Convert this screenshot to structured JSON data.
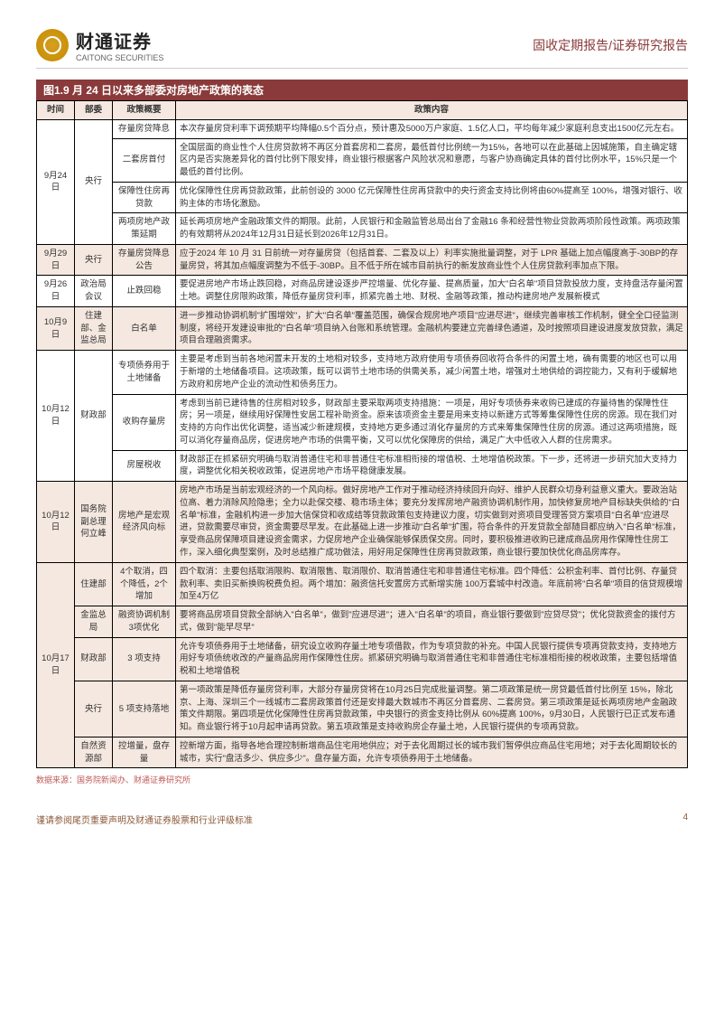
{
  "header": {
    "logo_cn": "财通证券",
    "logo_en": "CAITONG SECURITIES",
    "doc_type": "固收定期报告/证券研究报告"
  },
  "title": "图1.9 月 24 日以来多部委对房地产政策的表态",
  "columns": [
    "时间",
    "部委",
    "政策概要",
    "政策内容"
  ],
  "rows": [
    {
      "date": "9月24日",
      "dept": "央行",
      "summary": "存量房贷降息",
      "content": "本次存量房贷利率下调预期平均降幅0.5个百分点，预计惠及5000万户家庭、1.5亿人口，平均每年减少家庭利息支出1500亿元左右。"
    },
    {
      "date": "",
      "dept": "",
      "summary": "二套房首付",
      "content": "全国层面的商业性个人住房贷款将不再区分首套房和二套房，最低首付比例统一为15%，各地可以在此基础上因城施策，自主确定辖区内是否实施差异化的首付比例下限安排，商业银行根据客户风险状况和意愿，与客户协商确定具体的首付比例水平，15%只是一个最低的首付比例。"
    },
    {
      "date": "",
      "dept": "",
      "summary": "保障性住房再贷款",
      "content": "优化保障性住房再贷款政策，此前创设的 3000 亿元保障性住房再贷款中的央行资金支持比例将由60%提高至 100%，增强对银行、收购主体的市场化激励。"
    },
    {
      "date": "",
      "dept": "",
      "summary": "两项房地产政策延期",
      "content": "延长两项房地产金融政策文件的期限。此前，人民银行和金融监管总局出台了金融16 条和经营性物业贷款两项阶段性政策。两项政策的有效期将从2024年12月31日延长到2026年12月31日。"
    },
    {
      "date": "9月29日",
      "dept": "央行",
      "summary": "存量房贷降息公告",
      "content": "应于2024 年 10 月 31 日前统一对存量房贷（包括首套、二套及以上）利率实施批量调整，对于 LPR 基础上加点幅度高于-30BP的存量房贷，将其加点幅度调整为不低于-30BP。且不低于所在城市目前执行的新发放商业性个人住房贷款利率加点下限。",
      "highlight": true
    },
    {
      "date": "9月26日",
      "dept": "政治局会议",
      "summary": "止跌回稳",
      "content": "要促进房地产市场止跌回稳，对商品房建设逐步严控增量、优化存量、提高质量，加大\"白名单\"项目贷款投放力度，支持盘活存量闲置土地。调整住房限购政策，降低存量房贷利率，抓紧完善土地、财税、金融等政策，推动构建房地产发展新模式"
    },
    {
      "date": "10月9日",
      "dept": "住建部、金监总局",
      "summary": "白名单",
      "content": "进一步推动协调机制\"扩围增效\"，扩大\"白名单\"覆盖范围，确保合规房地产项目\"应进尽进\"，继续完善审核工作机制，健全全口径监测制度，将经开发建设审批的\"白名单\"项目纳入台账和系统管理。金融机构要建立完善绿色通道，及时按照项目建设进度发放贷款，满足项目合理融资需求。",
      "highlight": true
    },
    {
      "date": "10月12日",
      "dept": "财政部",
      "summary": "专项债券用于土地储备",
      "content": "主要是考虑到当前各地闲置未开发的土地相对较多，支持地方政府使用专项债券回收符合条件的闲置土地，确有需要的地区也可以用于新增的土地储备项目。这项政策，既可以调节土地市场的供需关系，减少闲置土地，增强对土地供给的调控能力，又有利于缓解地方政府和房地产企业的流动性和债务压力。"
    },
    {
      "date": "",
      "dept": "",
      "summary": "收购存量房",
      "content": "考虑到当前已建待售的住房相对较多，财政部主要采取两项支持措施：一项是，用好专项债券来收购已建成的存量待售的保障性住房；另一项是，继续用好保障性安居工程补助资金。原来该项资金主要是用来支持以新建方式等筹集保障性住房的房源。现在我们对支持的方向作出优化调整，适当减少新建规模，支持地方更多通过消化存量房的方式来筹集保障性住房的房源。通过这两项措施，既可以消化存量商品房，促进房地产市场的供需平衡，又可以优化保障房的供给，满足广大中低收入人群的住房需求。"
    },
    {
      "date": "",
      "dept": "",
      "summary": "房屋税收",
      "content": "财政部正在抓紧研究明确与取消普通住宅和非普通住宅标准相衔接的增值税、土地增值税政策。下一步，还将进一步研究加大支持力度，调整优化相关税收政策，促进房地产市场平稳健康发展。"
    },
    {
      "date": "10月12日",
      "dept": "国务院副总理何立峰",
      "summary": "房地产是宏观经济风向标",
      "content": "房地产市场是当前宏观经济的一个风向标。做好房地产工作对于推动经济持续回升向好、维护人民群众切身利益意义重大。要政治站位高、着力消除风险隐患；全力以赴保交楼、稳市场主体；要充分发挥房地产融资协调机制作用，加快修复房地产目标缺失供给的\"白名单\"标准，金融机构进一步加大信保贷和收成结等贷款政策包支持建议力度，切实做到对资项目受理答贷方案项目\"白名单\"应进尽进，贷款需要尽审贷，资金需要尽早发。在此基础上进一步推动\"白名单\"扩围，符合条件的开发贷款全部随目都应纳入\"白名单\"标准，享受商品房保障项目建设资金需求，力促房地产企业确保能够保质保交房。同时，要积极推进收购已建成商品房用作保障性住房工作，深入细化典型案例，及时总结推广成功做法，用好用足保障性住房再贷款政策，商业银行要加快优化商品房库存。",
      "highlight": true
    },
    {
      "date": "10月17日",
      "dept": "住建部",
      "summary": "4个取消，四个降低，2个增加",
      "content": "四个取消：主要包括取消限购、取消限售、取消限价、取消普通住宅和非普通住宅标准。四个降低：公积金利率、首付比例、存量贷款利率、卖旧买新换购税费负担。两个增加：融资信托安置房方式新增实施 100万套城中村改造。年底前将\"白名单\"项目的信贷规模增加至4万亿",
      "highlight": true
    },
    {
      "date": "",
      "dept": "金监总局",
      "summary": "融资协调机制3项优化",
      "content": "要将商品房项目贷款全部纳入\"白名单\"，做到\"应进尽进\"；进入\"白名单\"的项目，商业银行要做到\"应贷尽贷\"；优化贷款资金的拨付方式，做到\"能早尽早\"",
      "highlight": true
    },
    {
      "date": "",
      "dept": "财政部",
      "summary": "3 项支持",
      "content": "允许专项债券用于土地储备，研究设立收购存量土地专项借款，作为专项贷款的补充。中国人民银行提供专项再贷款支持，支持地方用好专项债统收改的产量商品房用作保障性住房。抓紧研究明确与取消普通住宅和非普通住宅标准相衔接的税收政策，主要包括增值税和土地增值税",
      "highlight": true
    },
    {
      "date": "",
      "dept": "央行",
      "summary": "5 项支持落地",
      "content": "第一项政策是降低存量房贷利率，大部分存量房贷将在10月25日完成批量调整。第二项政策是统一房贷最低首付比例至 15%，除北京、上海、深圳三个一线城市二套房政策首付还是安排最大数城市不再区分首套房、二套房贷。第三项政策是延长两项房地产金融政策文件期限。第四项是优化保障性住房再贷款政策，中央银行的资金支持比例从 60%提高 100%，9月30日，人民银行已正式发布通知。商业银行将于10月起申请再贷款。第五项政策是支持收购房企存量土地，人民银行提供的专项再贷款。",
      "highlight": true
    },
    {
      "date": "",
      "dept": "自然资源部",
      "summary": "控增量，盘存量",
      "content": "控新增方面，指导各地合理控制新增商品住宅用地供应；对于去化周期过长的城市我们暂停供应商品住宅用地；对于去化周期较长的城市，实行\"盘活多少、供应多少\"。盘存量方面，允许专项债券用于土地储备。",
      "highlight": true
    }
  ],
  "source": "数据来源：国务院新闻办、财通证券研究所",
  "footer": {
    "left": "谨请参阅尾页重要声明及财通证券股票和行业评级标准",
    "page": "4"
  }
}
